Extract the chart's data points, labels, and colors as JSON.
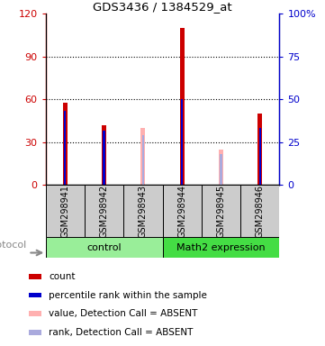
{
  "title": "GDS3436 / 1384529_at",
  "samples": [
    "GSM298941",
    "GSM298942",
    "GSM298943",
    "GSM298944",
    "GSM298945",
    "GSM298946"
  ],
  "group_labels": [
    "control",
    "Math2 expression"
  ],
  "ylim_left": [
    0,
    120
  ],
  "ylim_right": [
    0,
    100
  ],
  "yticks_left": [
    0,
    30,
    60,
    90,
    120
  ],
  "yticks_right": [
    0,
    25,
    50,
    75,
    100
  ],
  "ytick_labels_left": [
    "0",
    "30",
    "60",
    "90",
    "120"
  ],
  "ytick_labels_right": [
    "0",
    "25",
    "50",
    "75",
    "100%"
  ],
  "left_axis_color": "#cc0000",
  "right_axis_color": "#0000cc",
  "red_values": [
    58,
    42,
    0,
    110,
    0,
    50
  ],
  "blue_values": [
    52,
    38,
    0,
    60,
    0,
    40
  ],
  "pink_values": [
    0,
    0,
    40,
    0,
    25,
    0
  ],
  "lightblue_values": [
    0,
    0,
    35,
    0,
    22,
    0
  ],
  "red_color": "#cc0000",
  "blue_color": "#0000cc",
  "pink_color": "#ffb0b0",
  "lightblue_color": "#aaaadd",
  "legend_items": [
    {
      "label": "count",
      "color": "#cc0000"
    },
    {
      "label": "percentile rank within the sample",
      "color": "#0000cc"
    },
    {
      "label": "value, Detection Call = ABSENT",
      "color": "#ffb0b0"
    },
    {
      "label": "rank, Detection Call = ABSENT",
      "color": "#aaaadd"
    }
  ],
  "protocol_label": "protocol",
  "ctrl_color": "#99ee99",
  "math2_color": "#44dd44"
}
